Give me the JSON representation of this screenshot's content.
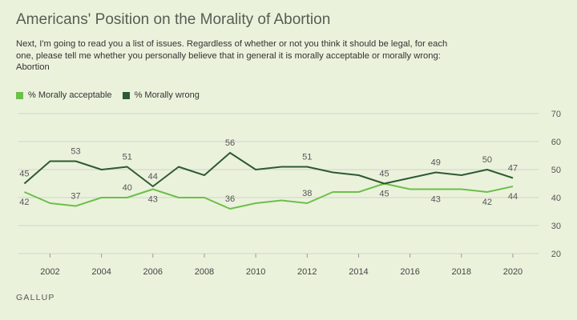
{
  "title": "Americans' Position on the Morality of Abortion",
  "subtitle": "Next, I'm going to read you a list of issues. Regardless of whether or not you think it should be legal, for each one, please tell me whether you personally believe that in general it is morally acceptable or morally wrong: Abortion",
  "source": "GALLUP",
  "colors": {
    "acceptable": "#6cc04a",
    "wrong": "#2e5a31",
    "grid": "#d3d3d3",
    "background": "#ebf2dc"
  },
  "legend": [
    {
      "label": "% Morally acceptable",
      "color": "#6cc04a"
    },
    {
      "label": "% Morally wrong",
      "color": "#2e5a31"
    }
  ],
  "chart_data": {
    "type": "line",
    "title": "Americans' Position on the Morality of Abortion",
    "xlabel": "",
    "ylabel": "",
    "xlim": [
      2001,
      2020.5
    ],
    "ylim": [
      20,
      70
    ],
    "x_ticks": [
      2002,
      2004,
      2006,
      2008,
      2010,
      2012,
      2014,
      2016,
      2018,
      2020
    ],
    "y_ticks": [
      20,
      30,
      40,
      50,
      60,
      70
    ],
    "grid": true,
    "legend_position": "top-left",
    "x": [
      2001,
      2002,
      2003,
      2004,
      2005,
      2006,
      2007,
      2008,
      2009,
      2010,
      2011,
      2012,
      2013,
      2014,
      2015,
      2016,
      2017,
      2018,
      2019,
      2020
    ],
    "series": [
      {
        "name": "% Morally acceptable",
        "values": [
          42,
          38,
          37,
          40,
          40,
          43,
          40,
          40,
          36,
          38,
          39,
          38,
          42,
          42,
          45,
          43,
          43,
          43,
          42,
          44
        ],
        "labels": [
          {
            "x": 2001,
            "value": 42,
            "pos": "below"
          },
          {
            "x": 2003,
            "value": 37,
            "pos": "above"
          },
          {
            "x": 2005,
            "value": 40,
            "pos": "above"
          },
          {
            "x": 2006,
            "value": 43,
            "pos": "below"
          },
          {
            "x": 2009,
            "value": 36,
            "pos": "above"
          },
          {
            "x": 2012,
            "value": 38,
            "pos": "above"
          },
          {
            "x": 2015,
            "value": 45,
            "pos": "below"
          },
          {
            "x": 2017,
            "value": 43,
            "pos": "below"
          },
          {
            "x": 2019,
            "value": 42,
            "pos": "below"
          },
          {
            "x": 2020,
            "value": 44,
            "pos": "below"
          }
        ]
      },
      {
        "name": "% Morally wrong",
        "values": [
          45,
          53,
          53,
          50,
          51,
          44,
          51,
          48,
          56,
          50,
          51,
          51,
          49,
          48,
          45,
          47,
          49,
          48,
          50,
          47
        ],
        "labels": [
          {
            "x": 2001,
            "value": 45,
            "pos": "above"
          },
          {
            "x": 2003,
            "value": 53,
            "pos": "above"
          },
          {
            "x": 2005,
            "value": 51,
            "pos": "above"
          },
          {
            "x": 2006,
            "value": 44,
            "pos": "above"
          },
          {
            "x": 2009,
            "value": 56,
            "pos": "above"
          },
          {
            "x": 2012,
            "value": 51,
            "pos": "above"
          },
          {
            "x": 2015,
            "value": 45,
            "pos": "above"
          },
          {
            "x": 2017,
            "value": 49,
            "pos": "above"
          },
          {
            "x": 2019,
            "value": 50,
            "pos": "above"
          },
          {
            "x": 2020,
            "value": 47,
            "pos": "above"
          }
        ]
      }
    ]
  }
}
